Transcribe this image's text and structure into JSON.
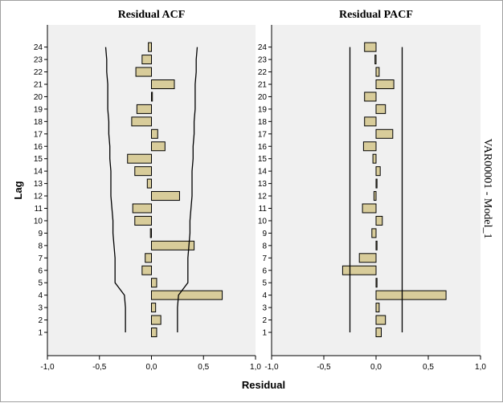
{
  "colors": {
    "bar_fill": "#d8cc9a",
    "bar_stroke": "#000000",
    "panel_bg": "#f0f0f0",
    "limit_line": "#000000"
  },
  "panel_label": "VAR00001 - Model_1",
  "y_axis_title": "Lag",
  "x_axis_title": "Residual",
  "chart_data": [
    {
      "type": "bar",
      "orientation": "horizontal",
      "title": "Residual ACF",
      "xlabel": "Residual",
      "ylabel": "Lag",
      "xlim": [
        -1.0,
        1.0
      ],
      "xticks": [
        "-1,0",
        "-0,5",
        "0,0",
        "0,5",
        "1,0"
      ],
      "tick_values": [
        -1.0,
        -0.5,
        0.0,
        0.5,
        1.0
      ],
      "categories": [
        "1",
        "2",
        "3",
        "4",
        "5",
        "6",
        "7",
        "8",
        "9",
        "10",
        "11",
        "12",
        "13",
        "14",
        "15",
        "16",
        "17",
        "18",
        "19",
        "20",
        "21",
        "22",
        "23",
        "24"
      ],
      "values": [
        0.05,
        0.09,
        0.04,
        0.68,
        0.05,
        -0.09,
        -0.06,
        0.41,
        -0.01,
        -0.16,
        -0.18,
        0.27,
        -0.04,
        -0.16,
        -0.23,
        0.13,
        0.06,
        -0.19,
        -0.14,
        0.0,
        0.22,
        -0.15,
        -0.09,
        -0.03
      ],
      "upper_limit": [
        0.25,
        0.25,
        0.25,
        0.26,
        0.35,
        0.35,
        0.35,
        0.36,
        0.37,
        0.37,
        0.38,
        0.39,
        0.39,
        0.39,
        0.4,
        0.4,
        0.41,
        0.41,
        0.42,
        0.42,
        0.42,
        0.43,
        0.43,
        0.44
      ],
      "lower_limit": [
        -0.25,
        -0.25,
        -0.25,
        -0.26,
        -0.35,
        -0.35,
        -0.35,
        -0.36,
        -0.37,
        -0.37,
        -0.38,
        -0.39,
        -0.39,
        -0.39,
        -0.4,
        -0.4,
        -0.41,
        -0.41,
        -0.42,
        -0.42,
        -0.42,
        -0.43,
        -0.43,
        -0.44
      ],
      "grid": false
    },
    {
      "type": "bar",
      "orientation": "horizontal",
      "title": "Residual PACF",
      "xlabel": "Residual",
      "ylabel": "Lag",
      "xlim": [
        -1.0,
        1.0
      ],
      "xticks": [
        "-1,0",
        "-0,5",
        "0,0",
        "0,5",
        "1,0"
      ],
      "tick_values": [
        -1.0,
        -0.5,
        0.0,
        0.5,
        1.0
      ],
      "categories": [
        "1",
        "2",
        "3",
        "4",
        "5",
        "6",
        "7",
        "8",
        "9",
        "10",
        "11",
        "12",
        "13",
        "14",
        "15",
        "16",
        "17",
        "18",
        "19",
        "20",
        "21",
        "22",
        "23",
        "24"
      ],
      "values": [
        0.05,
        0.09,
        0.03,
        0.67,
        0.0,
        -0.32,
        -0.16,
        0.0,
        -0.04,
        0.06,
        -0.13,
        -0.02,
        0.0,
        0.04,
        -0.03,
        -0.12,
        0.16,
        -0.11,
        0.09,
        -0.11,
        0.17,
        0.03,
        -0.01,
        -0.11
      ],
      "upper_limit": [
        0.25,
        0.25,
        0.25,
        0.25,
        0.25,
        0.25,
        0.25,
        0.25,
        0.25,
        0.25,
        0.25,
        0.25,
        0.25,
        0.25,
        0.25,
        0.25,
        0.25,
        0.25,
        0.25,
        0.25,
        0.25,
        0.25,
        0.25,
        0.25
      ],
      "lower_limit": [
        -0.25,
        -0.25,
        -0.25,
        -0.25,
        -0.25,
        -0.25,
        -0.25,
        -0.25,
        -0.25,
        -0.25,
        -0.25,
        -0.25,
        -0.25,
        -0.25,
        -0.25,
        -0.25,
        -0.25,
        -0.25,
        -0.25,
        -0.25,
        -0.25,
        -0.25,
        -0.25,
        -0.25
      ],
      "grid": false
    }
  ]
}
